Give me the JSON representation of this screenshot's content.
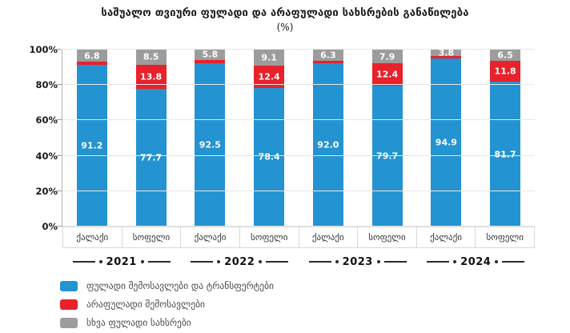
{
  "title": {
    "line1": "საშუალო თვიური ფულადი და არაფულადი სახსრების განაწილება",
    "line2": "(%)"
  },
  "chart_data": {
    "type": "bar",
    "subtype": "stacked-100-percent",
    "title": "საშუალო თვიური ფულადი და არაფულადი სახსრების განაწილება (%)",
    "ylim": [
      0,
      100
    ],
    "y_ticks": [
      "0%",
      "20%",
      "40%",
      "60%",
      "80%",
      "100%"
    ],
    "grid": true,
    "legend_position": "bottom-left",
    "series": [
      {
        "key": "cash",
        "name": "ფულადი შემოსავლები და ტრანსფერტები",
        "color": "#2493d1"
      },
      {
        "key": "noncash",
        "name": "არაფულადი შემოსავლები",
        "color": "#e8212b"
      },
      {
        "key": "other",
        "name": "სხვა ფულადი სახსრები",
        "color": "#9c9c9c"
      }
    ],
    "groups": [
      {
        "year": "2021",
        "bars": [
          {
            "category": "ქალაქი",
            "cash": 91.2,
            "noncash": 2.0,
            "other": 6.8
          },
          {
            "category": "სოფელი",
            "cash": 77.7,
            "noncash": 13.8,
            "other": 8.5
          }
        ]
      },
      {
        "year": "2022",
        "bars": [
          {
            "category": "ქალაქი",
            "cash": 92.5,
            "noncash": 1.7,
            "other": 5.8
          },
          {
            "category": "სოფელი",
            "cash": 78.4,
            "noncash": 12.4,
            "other": 9.1
          }
        ]
      },
      {
        "year": "2023",
        "bars": [
          {
            "category": "ქალაქი",
            "cash": 92.0,
            "noncash": 1.6,
            "other": 6.3
          },
          {
            "category": "სოფელი",
            "cash": 79.7,
            "noncash": 12.4,
            "other": 7.9
          }
        ]
      },
      {
        "year": "2024",
        "bars": [
          {
            "category": "ქალაქი",
            "cash": 94.9,
            "noncash": 1.3,
            "other": 3.8
          },
          {
            "category": "სოფელი",
            "cash": 81.7,
            "noncash": 11.8,
            "other": 6.5
          }
        ]
      }
    ]
  },
  "colors": {
    "blue": "#2493d1",
    "red": "#e8212b",
    "gray": "#9c9c9c",
    "grid": "#e7e7e7",
    "axis": "#b3b3b3",
    "title_text": "#1a1a1a",
    "axis_label_text": "#333333",
    "legend_text": "#4a4a4a"
  }
}
